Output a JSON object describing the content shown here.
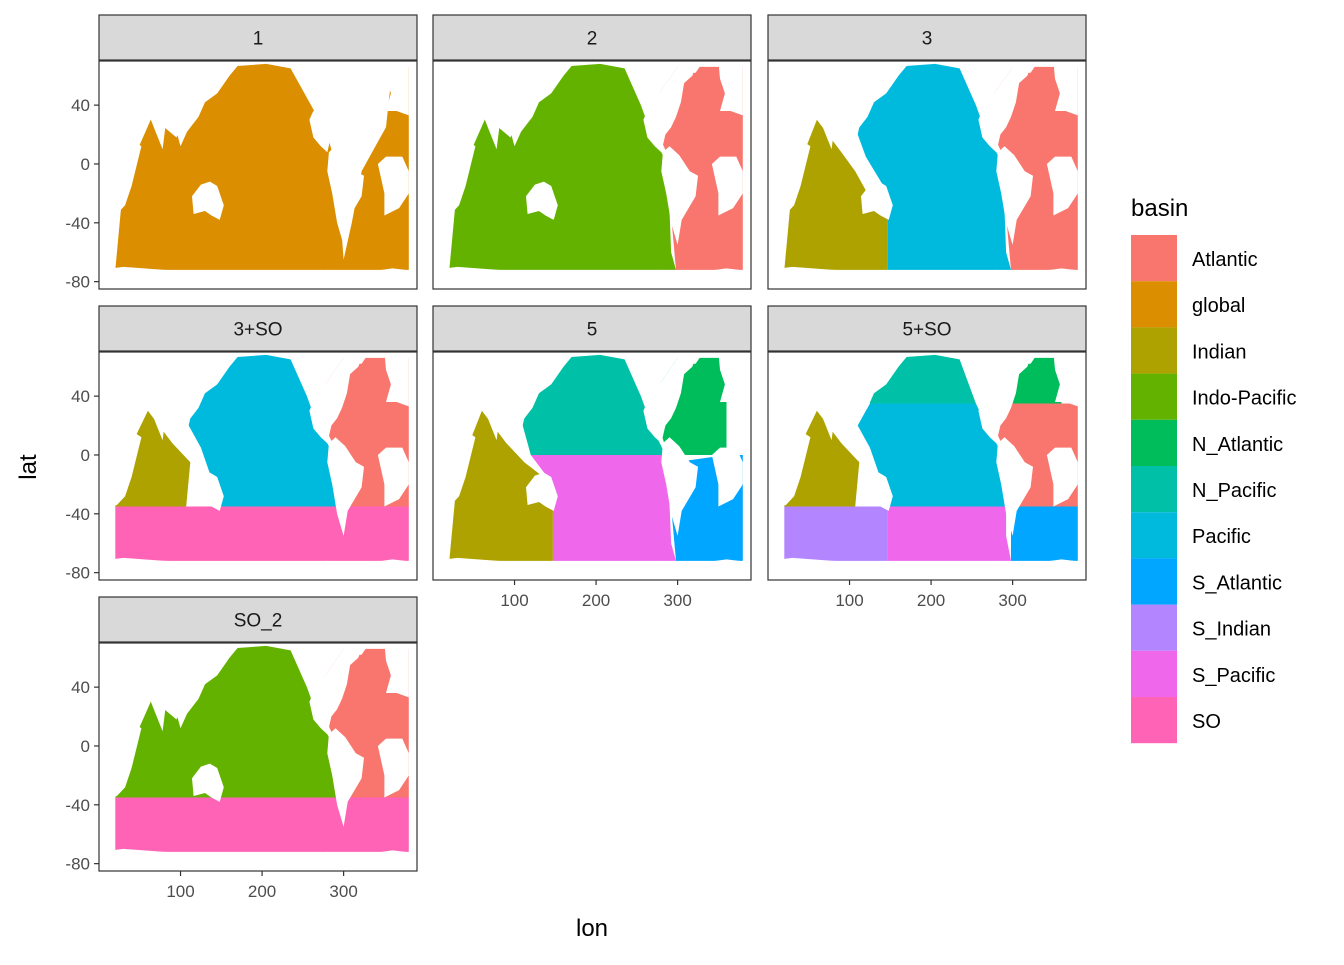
{
  "axis": {
    "x_label": "lon",
    "y_label": "lat",
    "x_ticks": [
      "100",
      "200",
      "300"
    ],
    "y_ticks": [
      "40",
      "0",
      "-40",
      "-80"
    ]
  },
  "legend": {
    "title": "basin",
    "placement": "right",
    "items": [
      {
        "label": "Atlantic",
        "color": "#F8766D"
      },
      {
        "label": "global",
        "color": "#DB8E00"
      },
      {
        "label": "Indian",
        "color": "#AEA200"
      },
      {
        "label": "Indo-Pacific",
        "color": "#64B200"
      },
      {
        "label": "N_Atlantic",
        "color": "#00BD5C"
      },
      {
        "label": "N_Pacific",
        "color": "#00C1A7"
      },
      {
        "label": "Pacific",
        "color": "#00BADE"
      },
      {
        "label": "S_Atlantic",
        "color": "#00A6FF"
      },
      {
        "label": "S_Indian",
        "color": "#B385FF"
      },
      {
        "label": "S_Pacific",
        "color": "#EF67EB"
      },
      {
        "label": "SO",
        "color": "#FF63B6"
      }
    ]
  },
  "panels": [
    {
      "title": "1",
      "regions": [
        {
          "basin": "global",
          "polys": [
            [
              [
                20,
                -72
              ],
              [
                30,
                -12
              ],
              [
                65,
                32
              ],
              [
                95,
                18
              ],
              [
                125,
                58
              ],
              [
                155,
                66
              ],
              [
                205,
                68
              ],
              [
                235,
                65
              ],
              [
                280,
                20
              ],
              [
                292,
                -5
              ],
              [
                300,
                -65
              ],
              [
                310,
                -40
              ],
              [
                322,
                -5
              ],
              [
                352,
                25
              ],
              [
                360,
                66
              ],
              [
                380,
                66
              ],
              [
                380,
                -72
              ]
            ]
          ]
        }
      ]
    },
    {
      "title": "2",
      "regions": [
        {
          "basin": "Atlantic",
          "polys": [
            [
              [
                292,
                -35
              ],
              [
                297,
                -5
              ],
              [
                278,
                18
              ],
              [
                258,
                30
              ],
              [
                280,
                50
              ],
              [
                300,
                66
              ],
              [
                380,
                66
              ],
              [
                380,
                -72
              ],
              [
                298,
                -72
              ]
            ]
          ]
        },
        {
          "basin": "Indo-Pacific",
          "polys": [
            [
              [
                20,
                -72
              ],
              [
                30,
                -12
              ],
              [
                65,
                32
              ],
              [
                95,
                18
              ],
              [
                125,
                58
              ],
              [
                155,
                66
              ],
              [
                205,
                68
              ],
              [
                235,
                65
              ],
              [
                255,
                40
              ],
              [
                268,
                20
              ],
              [
                288,
                0
              ],
              [
                292,
                -60
              ],
              [
                298,
                -72
              ]
            ]
          ]
        }
      ]
    },
    {
      "title": "3",
      "regions": [
        {
          "basin": "Atlantic",
          "polys": [
            [
              [
                292,
                -35
              ],
              [
                297,
                -5
              ],
              [
                278,
                18
              ],
              [
                258,
                30
              ],
              [
                280,
                50
              ],
              [
                300,
                66
              ],
              [
                380,
                66
              ],
              [
                380,
                -72
              ],
              [
                298,
                -72
              ]
            ]
          ]
        },
        {
          "basin": "Indian",
          "polys": [
            [
              [
                20,
                -72
              ],
              [
                30,
                -12
              ],
              [
                60,
                30
              ],
              [
                90,
                8
              ],
              [
                107,
                -5
              ],
              [
                122,
                -20
              ],
              [
                147,
                -20
              ],
              [
                147,
                -72
              ]
            ]
          ]
        },
        {
          "basin": "Pacific",
          "polys": [
            [
              [
                147,
                -72
              ],
              [
                147,
                -20
              ],
              [
                120,
                5
              ],
              [
                110,
                20
              ],
              [
                125,
                58
              ],
              [
                155,
                66
              ],
              [
                205,
                68
              ],
              [
                235,
                65
              ],
              [
                255,
                40
              ],
              [
                268,
                20
              ],
              [
                288,
                0
              ],
              [
                292,
                -60
              ],
              [
                298,
                -72
              ]
            ]
          ]
        }
      ]
    },
    {
      "title": "3+SO",
      "regions": [
        {
          "basin": "Atlantic",
          "polys": [
            [
              [
                292,
                -35
              ],
              [
                297,
                -5
              ],
              [
                278,
                18
              ],
              [
                258,
                30
              ],
              [
                280,
                50
              ],
              [
                300,
                66
              ],
              [
                380,
                66
              ],
              [
                380,
                -35
              ]
            ]
          ]
        },
        {
          "basin": "Indian",
          "polys": [
            [
              [
                20,
                -35
              ],
              [
                25,
                -10
              ],
              [
                60,
                30
              ],
              [
                90,
                8
              ],
              [
                112,
                -5
              ],
              [
                107,
                -35
              ]
            ]
          ]
        },
        {
          "basin": "Pacific",
          "polys": [
            [
              [
                150,
                -35
              ],
              [
                125,
                5
              ],
              [
                110,
                20
              ],
              [
                125,
                58
              ],
              [
                155,
                66
              ],
              [
                205,
                68
              ],
              [
                235,
                65
              ],
              [
                255,
                40
              ],
              [
                268,
                20
              ],
              [
                288,
                0
              ],
              [
                292,
                -35
              ]
            ]
          ]
        },
        {
          "basin": "SO",
          "polys": [
            [
              [
                20,
                -35
              ],
              [
                380,
                -35
              ],
              [
                380,
                -72
              ],
              [
                20,
                -72
              ]
            ]
          ]
        }
      ]
    },
    {
      "title": "5",
      "regions": [
        {
          "basin": "N_Atlantic",
          "polys": [
            [
              [
                288,
                0
              ],
              [
                278,
                18
              ],
              [
                258,
                30
              ],
              [
                280,
                50
              ],
              [
                300,
                66
              ],
              [
                360,
                66
              ],
              [
                360,
                0
              ]
            ]
          ]
        },
        {
          "basin": "N_Pacific",
          "polys": [
            [
              [
                120,
                0
              ],
              [
                110,
                20
              ],
              [
                125,
                58
              ],
              [
                155,
                66
              ],
              [
                205,
                68
              ],
              [
                235,
                65
              ],
              [
                255,
                40
              ],
              [
                268,
                20
              ],
              [
                285,
                0
              ]
            ]
          ]
        },
        {
          "basin": "S_Atlantic",
          "polys": [
            [
              [
                292,
                -35
              ],
              [
                297,
                -5
              ],
              [
                360,
                0
              ],
              [
                380,
                0
              ],
              [
                380,
                -72
              ],
              [
                298,
                -72
              ]
            ]
          ]
        },
        {
          "basin": "Indian",
          "polys": [
            [
              [
                20,
                -72
              ],
              [
                30,
                -12
              ],
              [
                60,
                30
              ],
              [
                90,
                8
              ],
              [
                112,
                -5
              ],
              [
                147,
                -20
              ],
              [
                147,
                -72
              ]
            ]
          ]
        },
        {
          "basin": "S_Pacific",
          "polys": [
            [
              [
                147,
                -72
              ],
              [
                147,
                -20
              ],
              [
                120,
                0
              ],
              [
                285,
                0
              ],
              [
                288,
                -5
              ],
              [
                292,
                -60
              ],
              [
                298,
                -72
              ]
            ]
          ]
        }
      ]
    },
    {
      "title": "5+SO",
      "regions": [
        {
          "basin": "N_Atlantic",
          "polys": [
            [
              [
                300,
                35
              ],
              [
                300,
                66
              ],
              [
                360,
                66
              ],
              [
                360,
                35
              ]
            ]
          ]
        },
        {
          "basin": "Atlantic",
          "polys": [
            [
              [
                292,
                -35
              ],
              [
                297,
                -5
              ],
              [
                278,
                18
              ],
              [
                258,
                30
              ],
              [
                300,
                35
              ],
              [
                380,
                35
              ],
              [
                380,
                -35
              ]
            ]
          ]
        },
        {
          "basin": "N_Pacific",
          "polys": [
            [
              [
                125,
                35
              ],
              [
                125,
                58
              ],
              [
                155,
                66
              ],
              [
                205,
                68
              ],
              [
                235,
                65
              ],
              [
                255,
                35
              ]
            ]
          ]
        },
        {
          "basin": "Pacific",
          "polys": [
            [
              [
                150,
                -35
              ],
              [
                125,
                5
              ],
              [
                110,
                20
              ],
              [
                125,
                35
              ],
              [
                255,
                35
              ],
              [
                268,
                20
              ],
              [
                288,
                0
              ],
              [
                292,
                -35
              ]
            ]
          ]
        },
        {
          "basin": "Indian",
          "polys": [
            [
              [
                20,
                -35
              ],
              [
                25,
                -10
              ],
              [
                60,
                30
              ],
              [
                90,
                8
              ],
              [
                112,
                -5
              ],
              [
                107,
                -35
              ]
            ]
          ]
        },
        {
          "basin": "S_Indian",
          "polys": [
            [
              [
                20,
                -35
              ],
              [
                147,
                -35
              ],
              [
                147,
                -72
              ],
              [
                20,
                -72
              ]
            ]
          ]
        },
        {
          "basin": "S_Pacific",
          "polys": [
            [
              [
                147,
                -35
              ],
              [
                292,
                -35
              ],
              [
                292,
                -55
              ],
              [
                298,
                -72
              ],
              [
                147,
                -72
              ]
            ]
          ]
        },
        {
          "basin": "S_Atlantic",
          "polys": [
            [
              [
                298,
                -35
              ],
              [
                380,
                -35
              ],
              [
                380,
                -72
              ],
              [
                298,
                -72
              ]
            ]
          ]
        }
      ]
    },
    {
      "title": "SO_2",
      "regions": [
        {
          "basin": "Atlantic",
          "polys": [
            [
              [
                292,
                -35
              ],
              [
                297,
                -5
              ],
              [
                278,
                18
              ],
              [
                258,
                30
              ],
              [
                280,
                50
              ],
              [
                300,
                66
              ],
              [
                380,
                66
              ],
              [
                380,
                -35
              ]
            ]
          ]
        },
        {
          "basin": "Indo-Pacific",
          "polys": [
            [
              [
                20,
                -35
              ],
              [
                30,
                -12
              ],
              [
                65,
                32
              ],
              [
                95,
                18
              ],
              [
                125,
                58
              ],
              [
                155,
                66
              ],
              [
                205,
                68
              ],
              [
                235,
                65
              ],
              [
                255,
                40
              ],
              [
                268,
                20
              ],
              [
                288,
                0
              ],
              [
                292,
                -35
              ]
            ]
          ]
        },
        {
          "basin": "SO",
          "polys": [
            [
              [
                20,
                -35
              ],
              [
                380,
                -35
              ],
              [
                380,
                -72
              ],
              [
                20,
                -72
              ]
            ]
          ]
        }
      ]
    }
  ]
}
